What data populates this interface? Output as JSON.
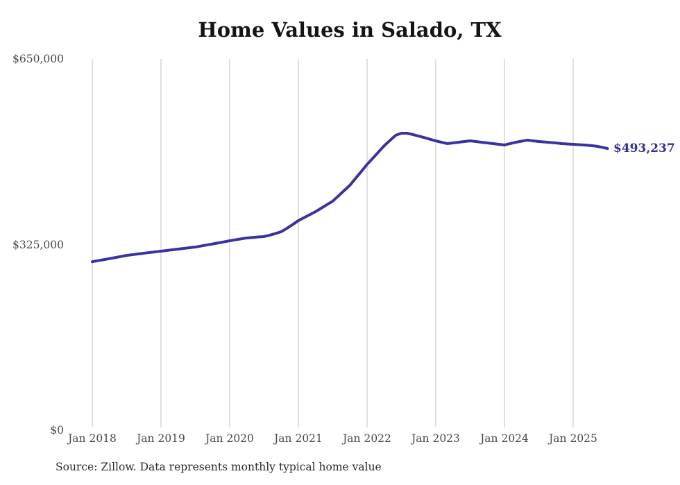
{
  "title": "Home Values in Salado, TX",
  "source_note": "Source: Zillow. Data represents monthly typical home value",
  "end_label": "$493,237",
  "colors": {
    "line": "#3a32a0",
    "end_label": "#332c96",
    "grid": "#c2c2c2",
    "axis_text": "#4a4a4a",
    "title_text": "#141414",
    "source_text": "#2a2a2a",
    "background": "#ffffff"
  },
  "y_axis": {
    "min": 0,
    "max": 650000,
    "ticks": [
      {
        "label": "$650,000",
        "value": 650000
      },
      {
        "label": "$325,000",
        "value": 325000
      },
      {
        "label": "$0",
        "value": 0
      }
    ]
  },
  "x_axis": {
    "ticks": [
      {
        "label": "Jan 2018",
        "month_index": 0
      },
      {
        "label": "Jan 2019",
        "month_index": 12
      },
      {
        "label": "Jan 2020",
        "month_index": 24
      },
      {
        "label": "Jan 2021",
        "month_index": 36
      },
      {
        "label": "Jan 2022",
        "month_index": 48
      },
      {
        "label": "Jan 2023",
        "month_index": 60
      },
      {
        "label": "Jan 2024",
        "month_index": 72
      },
      {
        "label": "Jan 2025",
        "month_index": 84
      }
    ]
  },
  "chart_data": {
    "type": "line",
    "title": "Home Values in Salado, TX",
    "series_name": "Monthly typical home value (USD)",
    "frequency": "monthly",
    "start": "Jan 2018",
    "end": "Jul 2025",
    "final_value": 493237,
    "peak_value": 520000,
    "ylim": [
      0,
      650000
    ],
    "grid": "vertical-only",
    "legend": "none",
    "values": [
      295000,
      296800,
      298600,
      300400,
      302200,
      304100,
      306000,
      307300,
      308600,
      309900,
      311100,
      312300,
      313500,
      314700,
      315900,
      317100,
      318300,
      319500,
      320700,
      322500,
      324300,
      326100,
      327900,
      329800,
      331700,
      333400,
      335000,
      336600,
      337500,
      338300,
      339000,
      341500,
      344400,
      347500,
      353500,
      360000,
      367000,
      372200,
      377400,
      382700,
      388800,
      394900,
      401000,
      410300,
      419600,
      428900,
      441000,
      453100,
      465300,
      476200,
      487100,
      498100,
      507300,
      516400,
      520000,
      520000,
      517600,
      515100,
      512300,
      509500,
      506600,
      504200,
      501800,
      503000,
      504200,
      505400,
      506600,
      505400,
      504200,
      503000,
      501800,
      500600,
      499400,
      501800,
      504200,
      506000,
      507900,
      506600,
      505400,
      504600,
      503800,
      503000,
      501800,
      501200,
      500600,
      500000,
      499400,
      498400,
      497400,
      495500,
      493237
    ]
  }
}
